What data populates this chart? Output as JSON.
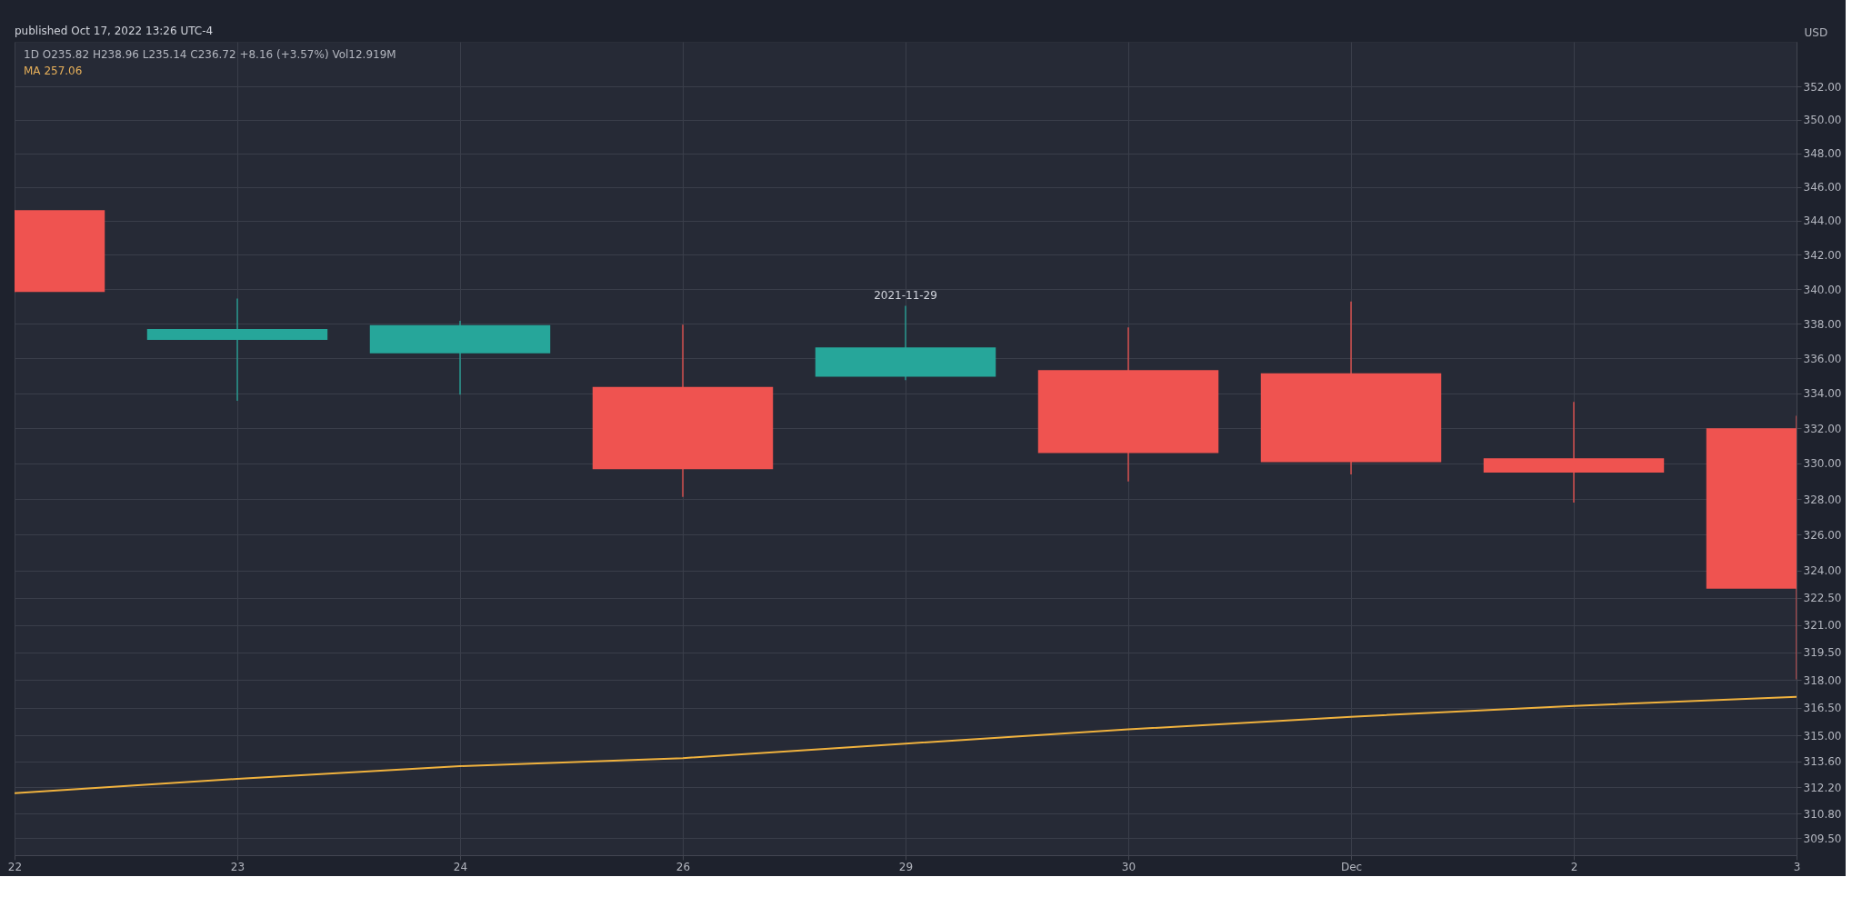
{
  "chart_data": {
    "type": "candlestick",
    "categories": [
      "22",
      "23",
      "24",
      "26",
      "29",
      "30",
      "Dec",
      "2",
      "3"
    ],
    "ohlc": [
      [
        344.62,
        344.62,
        339.83,
        339.83
      ],
      [
        337.05,
        339.45,
        333.56,
        337.68
      ],
      [
        336.28,
        338.16,
        333.91,
        337.91
      ],
      [
        334.35,
        337.93,
        328.12,
        329.68
      ],
      [
        334.94,
        339.03,
        334.74,
        336.63
      ],
      [
        335.32,
        337.78,
        328.99,
        330.59
      ],
      [
        335.13,
        339.28,
        329.39,
        330.08
      ],
      [
        330.3,
        333.49,
        327.8,
        329.49
      ],
      [
        331.99,
        332.7,
        318.03,
        323.01
      ]
    ],
    "colors": [
      "#ef5350",
      "#26a69a",
      "#26a69a",
      "#ef5350",
      "#26a69a",
      "#ef5350",
      "#ef5350",
      "#ef5350",
      "#ef5350"
    ],
    "series": [
      {
        "type": "line",
        "color": "#f0b23e",
        "values": [
          311.89,
          312.66,
          313.34,
          313.77,
          314.55,
          315.32,
          316.0,
          316.59,
          317.08
        ]
      }
    ],
    "ylabel": "USD",
    "log": "y",
    "grid": true,
    "ylim": [
      308.6,
      354.7
    ],
    "yticks": [
      {
        "value": 309.5,
        "label": "309.50"
      },
      {
        "value": 310.8,
        "label": "310.80"
      },
      {
        "value": 312.2,
        "label": "312.20"
      },
      {
        "value": 313.6,
        "label": "313.60"
      },
      {
        "value": 315,
        "label": "315.00"
      },
      {
        "value": 316.5,
        "label": "316.50"
      },
      {
        "value": 318,
        "label": "318.00"
      },
      {
        "value": 319.5,
        "label": "319.50"
      },
      {
        "value": 321,
        "label": "321.00"
      },
      {
        "value": 322.5,
        "label": "322.50"
      },
      {
        "value": 324,
        "label": "324.00"
      },
      {
        "value": 326,
        "label": "326.00"
      },
      {
        "value": 328,
        "label": "328.00"
      },
      {
        "value": 330,
        "label": "330.00"
      },
      {
        "value": 332,
        "label": "332.00"
      },
      {
        "value": 334,
        "label": "334.00"
      },
      {
        "value": 336,
        "label": "336.00"
      },
      {
        "value": 338,
        "label": "338.00"
      },
      {
        "value": 340,
        "label": "340.00"
      },
      {
        "value": 342,
        "label": "342.00"
      },
      {
        "value": 344,
        "label": "344.00"
      },
      {
        "value": 346,
        "label": "346.00"
      },
      {
        "value": 348,
        "label": "348.00"
      },
      {
        "value": 350,
        "label": "350.00"
      },
      {
        "value": 352,
        "label": "352.00"
      }
    ],
    "annotations": [
      "published Oct 17, 2022 13:26 UTC-4",
      "1D  O235.82  H238.96  L235.14  C236.72  +8.16 (+3.57%)  Vol12.919M",
      "MA  257.06",
      {
        "text": "2021-11-29",
        "x": "29",
        "y": 339.03
      }
    ]
  }
}
